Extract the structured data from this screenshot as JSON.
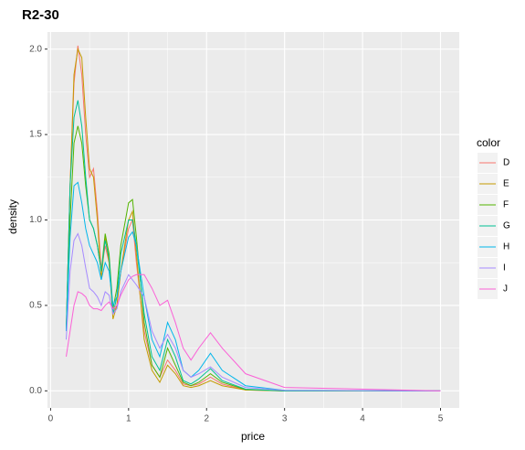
{
  "chart_data": {
    "type": "line",
    "title": "R2-30",
    "x_label": "price",
    "y_label": "density",
    "legend_title": "color",
    "grid": true,
    "legend_position": "right",
    "x": [
      0.2,
      0.25,
      0.3,
      0.35,
      0.4,
      0.45,
      0.5,
      0.55,
      0.6,
      0.65,
      0.7,
      0.75,
      0.8,
      0.85,
      0.9,
      1.0,
      1.05,
      1.1,
      1.2,
      1.3,
      1.4,
      1.5,
      1.6,
      1.7,
      1.8,
      1.9,
      2.05,
      2.2,
      2.5,
      3.0,
      5.0
    ],
    "series": [
      {
        "name": "D",
        "color": "#F8766D",
        "values": [
          0.35,
          1.2,
          1.8,
          2.02,
          1.85,
          1.5,
          1.25,
          1.3,
          1.05,
          0.7,
          0.85,
          0.75,
          0.45,
          0.5,
          0.7,
          0.95,
          1.0,
          0.75,
          0.35,
          0.15,
          0.08,
          0.18,
          0.12,
          0.04,
          0.03,
          0.04,
          0.08,
          0.04,
          0.005,
          0,
          0
        ]
      },
      {
        "name": "E",
        "color": "#C49A00",
        "values": [
          0.35,
          1.2,
          1.85,
          2.0,
          1.95,
          1.6,
          1.3,
          1.25,
          1.0,
          0.65,
          0.9,
          0.75,
          0.42,
          0.5,
          0.7,
          1.0,
          1.05,
          0.8,
          0.3,
          0.12,
          0.05,
          0.15,
          0.1,
          0.03,
          0.02,
          0.03,
          0.06,
          0.03,
          0.005,
          0,
          0
        ]
      },
      {
        "name": "F",
        "color": "#53B400",
        "values": [
          0.35,
          1.0,
          1.45,
          1.55,
          1.45,
          1.2,
          1.0,
          0.95,
          0.85,
          0.7,
          0.92,
          0.8,
          0.48,
          0.6,
          0.85,
          1.1,
          1.12,
          0.9,
          0.4,
          0.15,
          0.08,
          0.25,
          0.15,
          0.05,
          0.03,
          0.05,
          0.1,
          0.05,
          0.008,
          0,
          0
        ]
      },
      {
        "name": "G",
        "color": "#00C094",
        "values": [
          0.35,
          1.2,
          1.6,
          1.7,
          1.55,
          1.25,
          1.0,
          0.95,
          0.85,
          0.7,
          0.88,
          0.78,
          0.45,
          0.55,
          0.8,
          1.0,
          1.0,
          0.85,
          0.45,
          0.2,
          0.12,
          0.3,
          0.2,
          0.06,
          0.04,
          0.07,
          0.13,
          0.06,
          0.01,
          0,
          0
        ]
      },
      {
        "name": "H",
        "color": "#00B6EB",
        "values": [
          0.35,
          0.9,
          1.2,
          1.22,
          1.1,
          0.95,
          0.85,
          0.8,
          0.75,
          0.65,
          0.75,
          0.7,
          0.5,
          0.55,
          0.7,
          0.9,
          0.93,
          0.85,
          0.55,
          0.3,
          0.2,
          0.4,
          0.3,
          0.12,
          0.08,
          0.12,
          0.22,
          0.12,
          0.03,
          0.003,
          0
        ]
      },
      {
        "name": "I",
        "color": "#A58AFF",
        "values": [
          0.3,
          0.7,
          0.88,
          0.92,
          0.85,
          0.72,
          0.6,
          0.58,
          0.55,
          0.5,
          0.58,
          0.56,
          0.45,
          0.48,
          0.58,
          0.68,
          0.65,
          0.62,
          0.55,
          0.35,
          0.25,
          0.33,
          0.25,
          0.12,
          0.08,
          0.1,
          0.14,
          0.08,
          0.02,
          0.003,
          0
        ]
      },
      {
        "name": "J",
        "color": "#FB61D7",
        "values": [
          0.2,
          0.35,
          0.5,
          0.58,
          0.57,
          0.55,
          0.5,
          0.48,
          0.48,
          0.47,
          0.5,
          0.52,
          0.48,
          0.5,
          0.56,
          0.65,
          0.67,
          0.68,
          0.68,
          0.6,
          0.5,
          0.53,
          0.4,
          0.25,
          0.18,
          0.25,
          0.34,
          0.25,
          0.1,
          0.02,
          0
        ]
      }
    ],
    "xlim": [
      -0.04,
      5.24
    ],
    "xticks": [
      0,
      1,
      2,
      3,
      4,
      5
    ],
    "ylim": [
      -0.1,
      2.1
    ],
    "yticks": [
      {
        "value": 0,
        "label": "0.0"
      },
      {
        "value": 0.5,
        "label": "0.5"
      },
      {
        "value": 1,
        "label": "1.0"
      },
      {
        "value": 1.5,
        "label": "1.5"
      },
      {
        "value": 2,
        "label": "2.0"
      }
    ]
  }
}
